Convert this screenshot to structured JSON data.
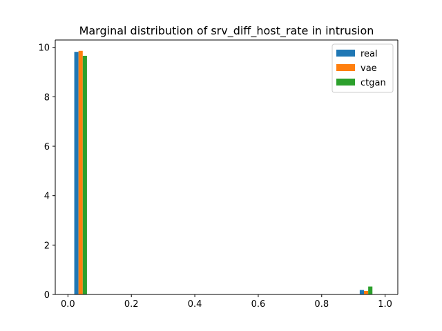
{
  "chart_data": {
    "type": "bar",
    "title": "Marginal distribution of srv_diff_host_rate in intrusion",
    "xlabel": "",
    "ylabel": "",
    "xlim": [
      -0.04,
      1.04
    ],
    "ylim": [
      0,
      10.3
    ],
    "xticks": [
      0.0,
      0.2,
      0.4,
      0.6,
      0.8,
      1.0
    ],
    "xtick_labels": [
      "0.0",
      "0.2",
      "0.4",
      "0.6",
      "0.8",
      "1.0"
    ],
    "yticks": [
      0,
      2,
      4,
      6,
      8,
      10
    ],
    "ytick_labels": [
      "0",
      "2",
      "4",
      "6",
      "8",
      "10"
    ],
    "bin_edges": [
      0.0,
      0.1,
      0.2,
      0.3,
      0.4,
      0.5,
      0.6,
      0.7,
      0.8,
      0.9,
      1.0
    ],
    "series": [
      {
        "name": "real",
        "color": "#1f77b4",
        "values": [
          9.82,
          0,
          0,
          0,
          0,
          0,
          0,
          0,
          0,
          0.18
        ]
      },
      {
        "name": "vae",
        "color": "#ff7f0e",
        "values": [
          9.86,
          0,
          0,
          0,
          0,
          0,
          0,
          0,
          0,
          0.14
        ]
      },
      {
        "name": "ctgan",
        "color": "#2ca02c",
        "values": [
          9.66,
          0,
          0,
          0,
          0,
          0,
          0,
          0,
          0,
          0.32
        ]
      }
    ],
    "legend": {
      "position": "top-right"
    },
    "grid": false
  }
}
